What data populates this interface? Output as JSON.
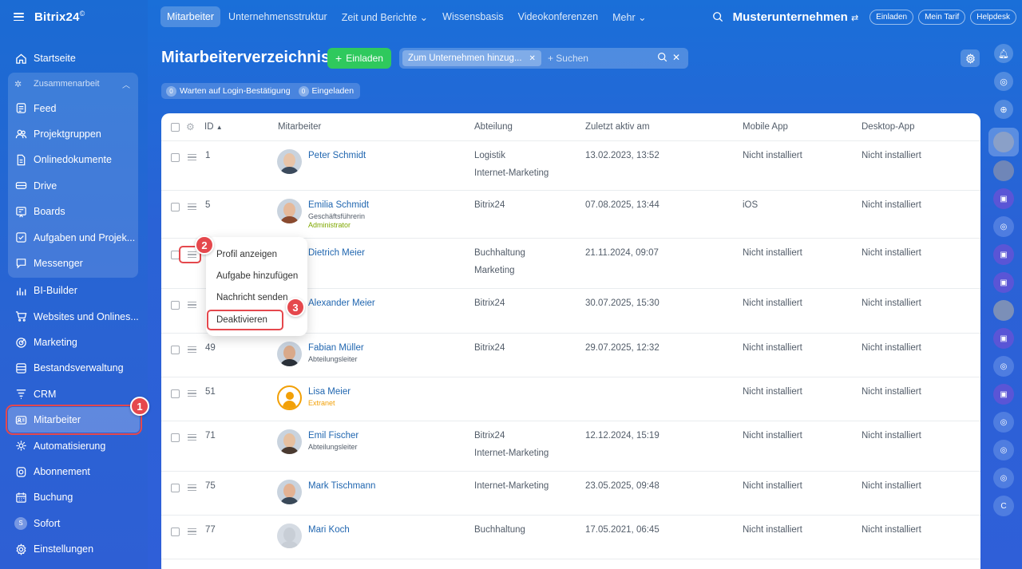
{
  "app": {
    "logo": "Bitrix24",
    "logo_mark": "©"
  },
  "sidebar": {
    "items_top": [
      {
        "label": "Startseite",
        "icon": "home-icon"
      }
    ],
    "group": {
      "title": "Zusammenarbeit",
      "items": [
        {
          "label": "Feed",
          "icon": "feed-icon"
        },
        {
          "label": "Projektgruppen",
          "icon": "groups-icon"
        },
        {
          "label": "Onlinedokumente",
          "icon": "documents-icon"
        },
        {
          "label": "Drive",
          "icon": "drive-icon"
        },
        {
          "label": "Boards",
          "icon": "boards-icon"
        },
        {
          "label": "Aufgaben und Projek...",
          "icon": "tasks-icon"
        },
        {
          "label": "Messenger",
          "icon": "messenger-icon"
        }
      ]
    },
    "items": [
      {
        "label": "BI-Builder",
        "icon": "bi-icon"
      },
      {
        "label": "Websites und Onlines...",
        "icon": "cart-icon"
      },
      {
        "label": "Marketing",
        "icon": "marketing-icon"
      },
      {
        "label": "Bestandsverwaltung",
        "icon": "inventory-icon"
      },
      {
        "label": "CRM",
        "icon": "crm-icon"
      },
      {
        "label": "Mitarbeiter",
        "icon": "employees-icon",
        "active": true
      },
      {
        "label": "Automatisierung",
        "icon": "automation-icon"
      },
      {
        "label": "Abonnement",
        "icon": "subscription-icon"
      },
      {
        "label": "Buchung",
        "icon": "booking-icon"
      },
      {
        "label": "Sofort",
        "icon": "s-avatar",
        "avatar_letter": "S"
      },
      {
        "label": "Einstellungen",
        "icon": "settings-icon"
      }
    ]
  },
  "topbar": {
    "tabs": [
      "Mitarbeiter",
      "Unternehmensstruktur",
      "Zeit und Berichte ⌄",
      "Wissensbasis",
      "Videokonferenzen",
      "Mehr ⌄"
    ],
    "company": "Musterunternehmen",
    "pills": [
      "Einladen",
      "Mein Tarif",
      "Helpdesk"
    ]
  },
  "header": {
    "title": "Mitarbeiterverzeichnis",
    "invite_button": "Einladen",
    "filter_chip": "Zum Unternehmen hinzug...",
    "search_placeholder": "+ Suchen",
    "counters": [
      {
        "count": "0",
        "label": "Warten auf Login-Bestätigung"
      },
      {
        "count": "0",
        "label": "Eingeladen"
      }
    ]
  },
  "table": {
    "columns": [
      "ID",
      "Mitarbeiter",
      "Abteilung",
      "Zuletzt aktiv am",
      "Mobile App",
      "Desktop-App"
    ],
    "rows": [
      {
        "id": "1",
        "name": "Peter Schmidt",
        "sub": "",
        "dept": [
          "Logistik",
          "Internet-Marketing"
        ],
        "last": "13.02.2023, 13:52",
        "mobile": "Nicht installiert",
        "desktop": "Nicht installiert"
      },
      {
        "id": "5",
        "name": "Emilia Schmidt",
        "sub": "Geschäftsführerin",
        "role": "Administrator",
        "dept": [
          "Bitrix24"
        ],
        "last": "07.08.2025, 13:44",
        "mobile": "iOS",
        "desktop": "Nicht installiert"
      },
      {
        "id": "",
        "name": "Dietrich Meier",
        "sub": "",
        "dept": [
          "Buchhaltung",
          "Marketing"
        ],
        "last": "21.11.2024, 09:07",
        "mobile": "Nicht installiert",
        "desktop": "Nicht installiert"
      },
      {
        "id": "",
        "name": "Alexander Meier",
        "sub": "",
        "dept": [
          "Bitrix24"
        ],
        "last": "30.07.2025, 15:30",
        "mobile": "Nicht installiert",
        "desktop": "Nicht installiert"
      },
      {
        "id": "49",
        "name": "Fabian Müller",
        "sub": "Abteilungsleiter",
        "dept": [
          "Bitrix24"
        ],
        "last": "29.07.2025, 12:32",
        "mobile": "Nicht installiert",
        "desktop": "Nicht installiert"
      },
      {
        "id": "51",
        "name": "Lisa Meier",
        "sub": "",
        "extranet": "Extranet",
        "dept": [],
        "last": "",
        "mobile": "Nicht installiert",
        "desktop": "Nicht installiert"
      },
      {
        "id": "71",
        "name": "Emil Fischer",
        "sub": "Abteilungsleiter",
        "dept": [
          "Bitrix24",
          "Internet-Marketing"
        ],
        "last": "12.12.2024, 15:19",
        "mobile": "Nicht installiert",
        "desktop": "Nicht installiert"
      },
      {
        "id": "75",
        "name": "Mark Tischmann",
        "sub": "",
        "dept": [
          "Internet-Marketing"
        ],
        "last": "23.05.2025, 09:48",
        "mobile": "Nicht installiert",
        "desktop": "Nicht installiert"
      },
      {
        "id": "77",
        "name": "Mari Koch",
        "sub": "",
        "dept": [
          "Buchhaltung"
        ],
        "last": "17.05.2021, 06:45",
        "mobile": "Nicht installiert",
        "desktop": "Nicht installiert"
      }
    ]
  },
  "context_menu": {
    "items": [
      "Profil anzeigen",
      "Aufgabe hinzufügen",
      "Nachricht senden",
      "Deaktivieren"
    ]
  },
  "callouts": [
    "1",
    "2",
    "3"
  ],
  "rail": {
    "bottom_letter": "C"
  },
  "colors": {
    "accent": "#2fc95d",
    "highlight": "#e5484d",
    "link": "#2066b0"
  }
}
